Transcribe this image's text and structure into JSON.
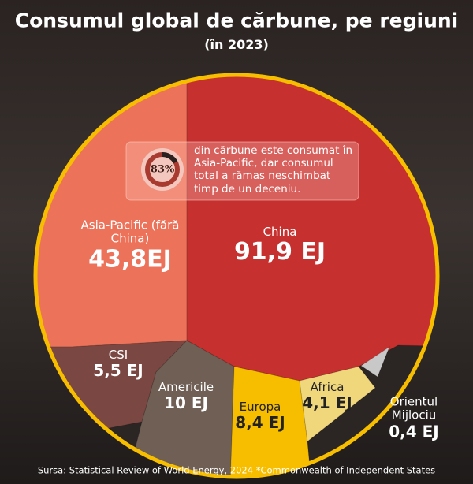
{
  "chart_data": {
    "type": "voronoi",
    "title": "Consumul global de cărbune, pe regiuni",
    "subtitle": "(în 2023)",
    "categories": [
      "Asia-Pacific (fără China)",
      "China",
      "CSI",
      "Americile",
      "Europa",
      "Africa",
      "Orientul Mijlociu"
    ],
    "values": [
      43.8,
      91.9,
      5.5,
      10,
      8.4,
      4.1,
      0.4
    ],
    "value_labels": [
      "43,8EJ",
      "91,9 EJ",
      "5,5 EJ",
      "10 EJ",
      "8,4 EJ",
      "4,1 EJ",
      "0,4 EJ"
    ],
    "colors": [
      "#ec725a",
      "#c6302e",
      "#7b4742",
      "#6f5f55",
      "#f7be00",
      "#f1d77c",
      "#c8c8c8"
    ],
    "callout": {
      "value": 83,
      "label": "83%",
      "text": "din cărbune este consumat în Asia-Pacific, dar consumul total a rămas neschimbat timp de un deceniu."
    },
    "source": "Sursa: Statistical Review of World Energy, 2024 *Commonwealth of Independent States"
  }
}
